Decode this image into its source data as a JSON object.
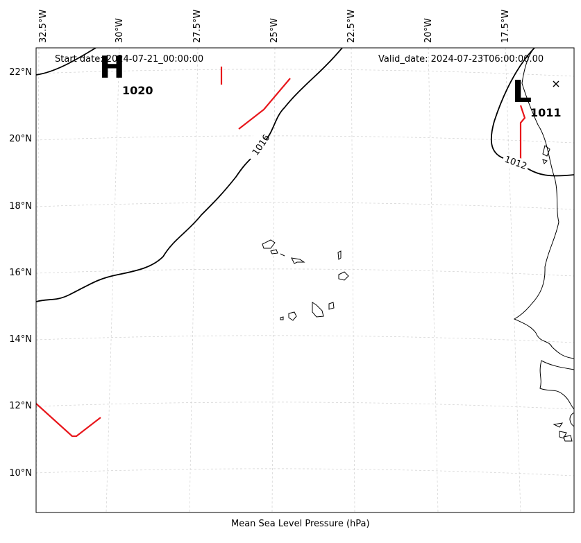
{
  "header": {
    "start_date": "Start date: 2024-07-21_00:00:00",
    "valid_date": "Valid_date: 2024-07-23T06:00:00.00"
  },
  "axes": {
    "longitude_labels": [
      "32.5°W",
      "30°W",
      "27.5°W",
      "25°W",
      "22.5°W",
      "20°W",
      "17.5°W"
    ],
    "latitude_labels": [
      "22°N",
      "20°N",
      "18°N",
      "16°N",
      "14°N",
      "12°N",
      "10°N"
    ],
    "xlabel": "Mean Sea Level Pressure (hPa)"
  },
  "isobars": {
    "labels": [
      "1016",
      "1012"
    ]
  },
  "pressure_centers": [
    {
      "type": "H",
      "value": "1020"
    },
    {
      "type": "L",
      "value": "1011"
    }
  ],
  "colors": {
    "isobar": "#000000",
    "front": "#e8161b",
    "grid": "#cccccc"
  },
  "marker_icon": "x-marker-icon"
}
